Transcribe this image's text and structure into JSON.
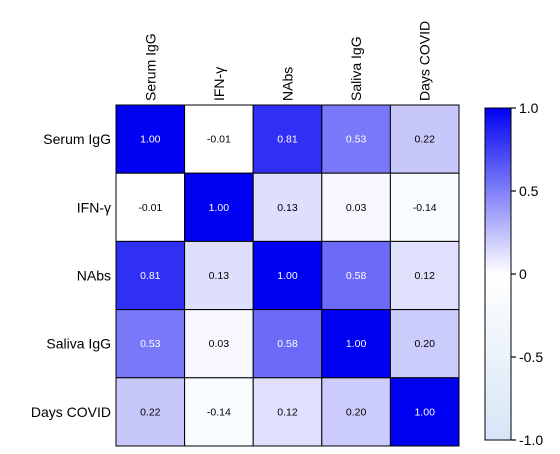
{
  "chart_data": {
    "type": "heatmap",
    "title": "",
    "variables": [
      "Serum IgG",
      "IFN-γ",
      "NAbs",
      "Saliva IgG",
      "Days COVID"
    ],
    "matrix": [
      [
        1.0,
        -0.01,
        0.81,
        0.53,
        0.22
      ],
      [
        -0.01,
        1.0,
        0.13,
        0.03,
        -0.14
      ],
      [
        0.81,
        0.13,
        1.0,
        0.58,
        0.12
      ],
      [
        0.53,
        0.03,
        0.58,
        1.0,
        0.2
      ],
      [
        0.22,
        -0.14,
        0.12,
        0.2,
        1.0
      ]
    ],
    "cell_labels": [
      [
        "1.00",
        "-0.01",
        "0.81",
        "0.53",
        "0.22"
      ],
      [
        "-0.01",
        "1.00",
        "0.13",
        "0.03",
        "-0.14"
      ],
      [
        "0.81",
        "0.13",
        "1.00",
        "0.58",
        "0.12"
      ],
      [
        "0.53",
        "0.03",
        "0.58",
        "1.00",
        "0.20"
      ],
      [
        "0.22",
        "-0.14",
        "0.12",
        "0.20",
        "1.00"
      ]
    ],
    "colorbar": {
      "range": [
        -1.0,
        1.0
      ],
      "ticks": [
        1.0,
        0.5,
        0,
        -0.5,
        -1.0
      ],
      "tick_labels": [
        "1.0",
        "0.5",
        "0",
        "-0.5",
        "-1.0"
      ],
      "color_min": "#d6e6f7",
      "color_mid": "#ffffff",
      "color_max": "#0000f2"
    },
    "legend_position": "right",
    "grid": false
  },
  "colors": {
    "text_dark_cell": "#ffffff",
    "text_light_cell": "#000000",
    "border": "#000000"
  }
}
